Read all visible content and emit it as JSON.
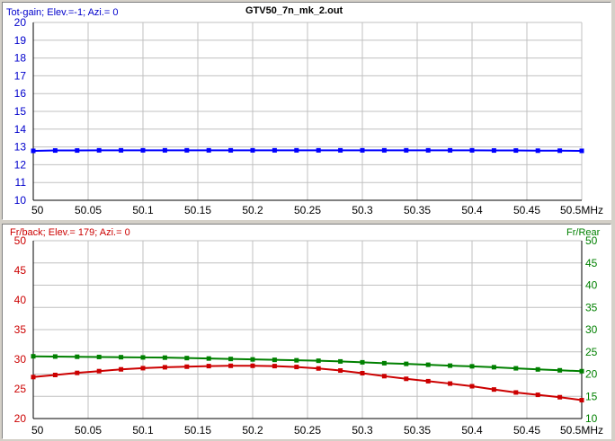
{
  "chart_data": [
    {
      "type": "line",
      "title": "GTV50_7n_mk_2.out",
      "ylabel_left": "Tot-gain; Elev.=-1; Azi.= 0",
      "x_unit": "MHz",
      "x_ticks": [
        "50",
        "50.05",
        "50.1",
        "50.15",
        "50.2",
        "50.25",
        "50.3",
        "50.35",
        "50.4",
        "50.45",
        "50.5MHz"
      ],
      "y_ticks": [
        "20",
        "19",
        "18",
        "17",
        "16",
        "15",
        "14",
        "13",
        "12",
        "11",
        "10"
      ],
      "xlim": [
        50,
        50.5
      ],
      "ylim": [
        10,
        20
      ],
      "grid": true,
      "series_color": "#0000ff",
      "x": [
        50.0,
        50.02,
        50.04,
        50.06,
        50.08,
        50.1,
        50.12,
        50.14,
        50.16,
        50.18,
        50.2,
        50.22,
        50.24,
        50.26,
        50.28,
        50.3,
        50.32,
        50.34,
        50.36,
        50.38,
        50.4,
        50.42,
        50.44,
        50.46,
        50.48,
        50.5
      ],
      "series": [
        {
          "values": [
            12.78,
            12.8,
            12.8,
            12.81,
            12.81,
            12.81,
            12.81,
            12.81,
            12.81,
            12.81,
            12.81,
            12.81,
            12.81,
            12.81,
            12.81,
            12.81,
            12.81,
            12.81,
            12.81,
            12.81,
            12.81,
            12.8,
            12.8,
            12.79,
            12.79,
            12.78
          ]
        }
      ]
    },
    {
      "type": "line",
      "ylabel_left": "Fr/back; Elev.= 179; Azi.= 0",
      "ylabel_right": "Fr/Rear",
      "x_ticks": [
        "50",
        "50.05",
        "50.1",
        "50.15",
        "50.2",
        "50.25",
        "50.3",
        "50.35",
        "50.4",
        "50.45",
        "50.5MHz"
      ],
      "y_ticks_left": [
        "50",
        "45",
        "40",
        "35",
        "30",
        "25",
        "20"
      ],
      "y_ticks_right": [
        "50",
        "45",
        "40",
        "35",
        "30",
        "25",
        "20",
        "15",
        "10"
      ],
      "xlim": [
        50,
        50.5
      ],
      "ylim_left": [
        20,
        50
      ],
      "ylim_right": [
        10,
        50
      ],
      "grid": true,
      "left_color": "#cc0000",
      "right_color": "#008000",
      "x": [
        50.0,
        50.02,
        50.04,
        50.06,
        50.08,
        50.1,
        50.12,
        50.14,
        50.16,
        50.18,
        50.2,
        50.22,
        50.24,
        50.26,
        50.28,
        50.3,
        50.32,
        50.34,
        50.36,
        50.38,
        50.4,
        50.42,
        50.44,
        50.46,
        50.48,
        50.5
      ],
      "series": [
        {
          "axis": "left",
          "values": [
            27.0,
            27.35,
            27.7,
            28.0,
            28.3,
            28.5,
            28.65,
            28.75,
            28.85,
            28.9,
            28.9,
            28.85,
            28.7,
            28.45,
            28.1,
            27.65,
            27.15,
            26.7,
            26.3,
            25.9,
            25.45,
            24.9,
            24.4,
            24.0,
            23.6,
            23.1
          ]
        },
        {
          "axis": "right",
          "values": [
            24.0,
            23.95,
            23.9,
            23.85,
            23.8,
            23.75,
            23.7,
            23.6,
            23.5,
            23.4,
            23.3,
            23.2,
            23.1,
            23.0,
            22.85,
            22.65,
            22.45,
            22.3,
            22.1,
            21.9,
            21.75,
            21.55,
            21.3,
            21.05,
            20.85,
            20.65
          ]
        }
      ]
    }
  ]
}
